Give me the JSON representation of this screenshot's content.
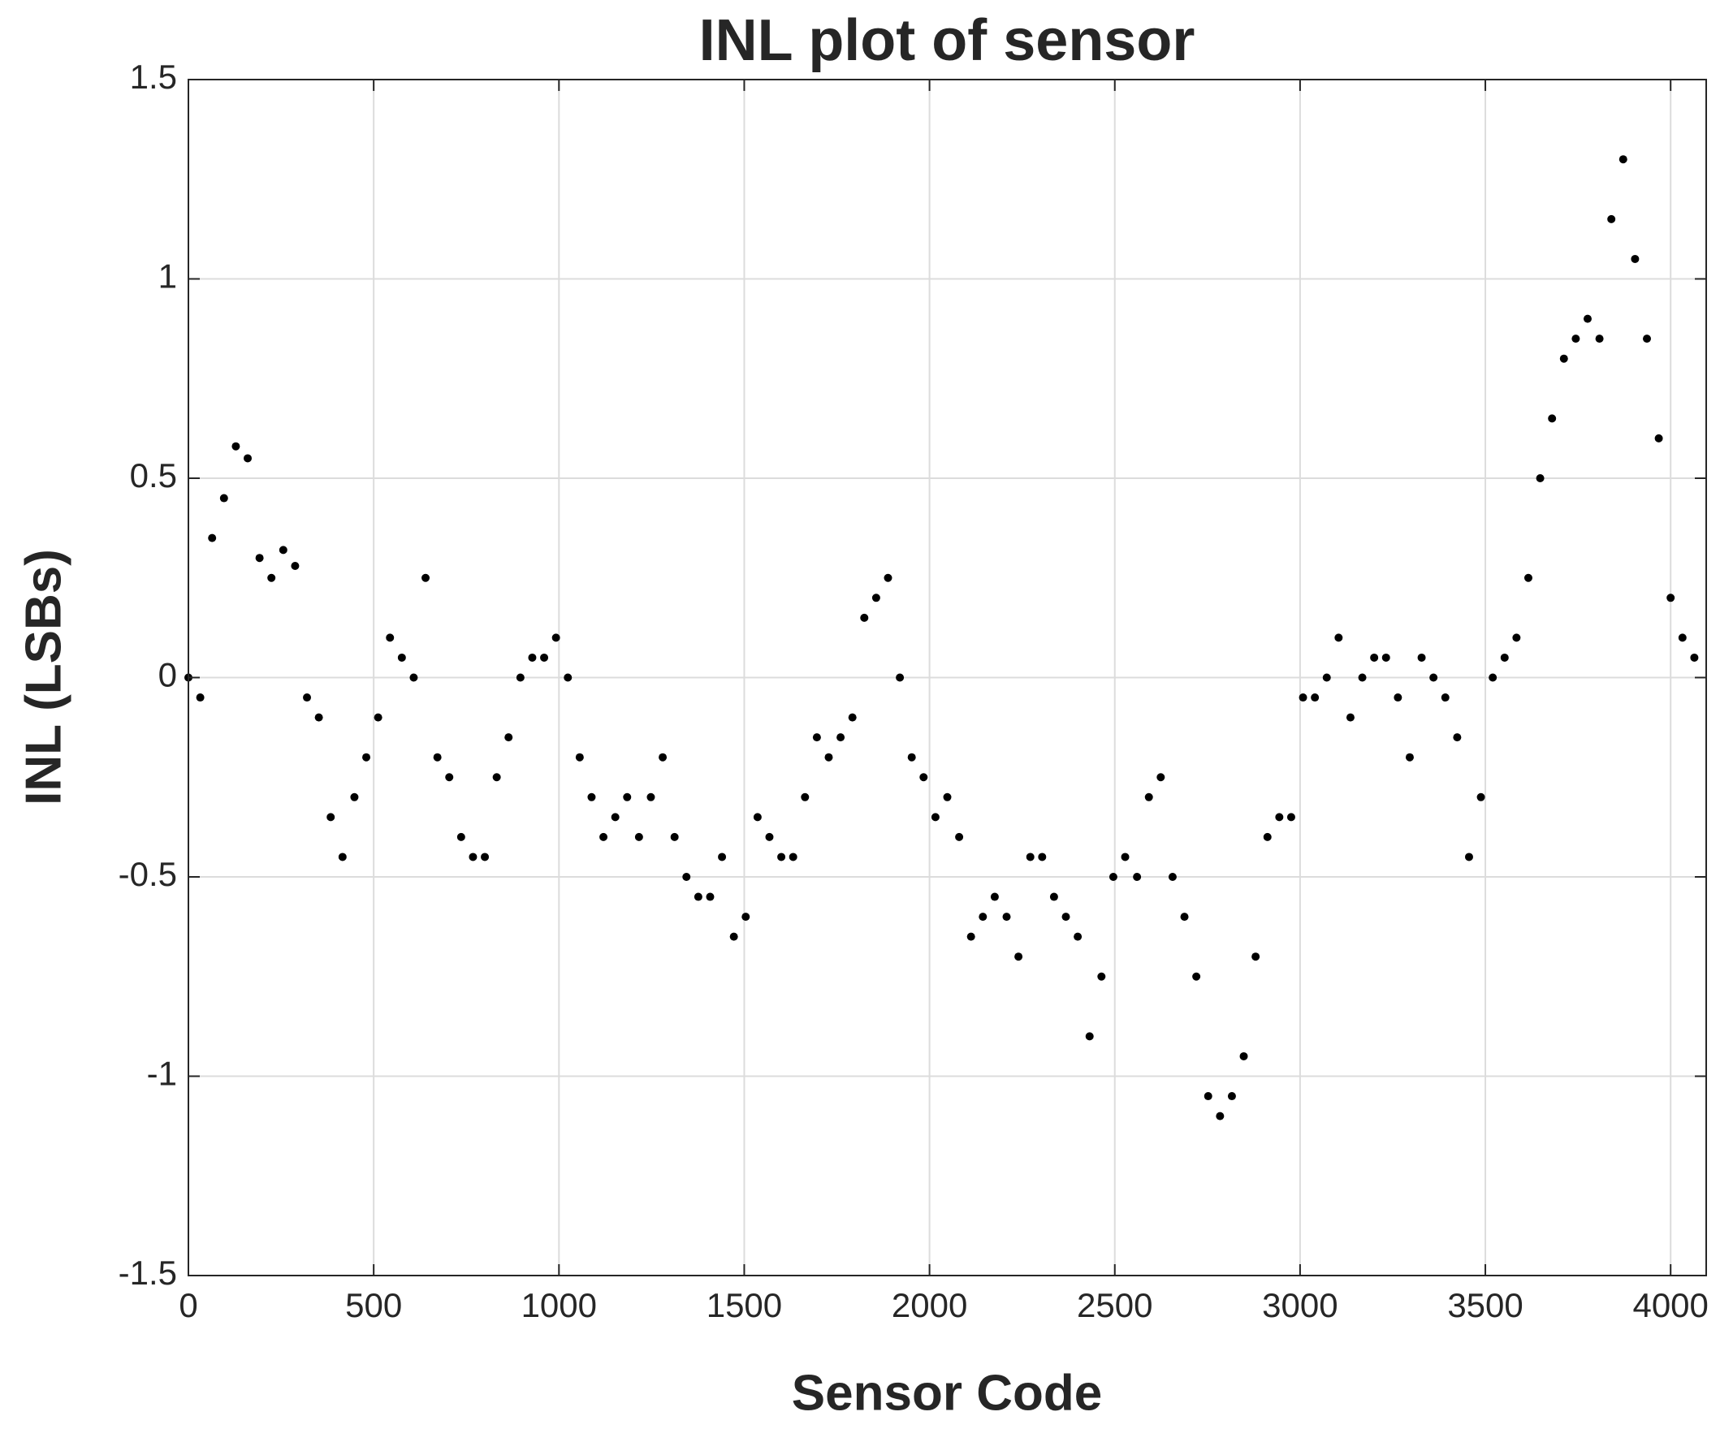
{
  "chart_data": {
    "type": "scatter",
    "title": "INL plot of sensor",
    "x_label": "Sensor Code",
    "y_label": "INL (LSBs)",
    "xlim": [
      0,
      4096
    ],
    "ylim": [
      -1.5,
      1.5
    ],
    "xticks": [
      0,
      500,
      1000,
      1500,
      2000,
      2500,
      3000,
      3500,
      4000
    ],
    "yticks": [
      -1.5,
      -1,
      -0.5,
      0,
      0.5,
      1,
      1.5
    ],
    "grid": true,
    "series": [
      {
        "color": "#000000",
        "x": [
          0,
          32,
          64,
          96,
          128,
          160,
          192,
          224,
          256,
          288,
          320,
          352,
          384,
          416,
          448,
          480,
          512,
          544,
          576,
          608,
          640,
          672,
          704,
          736,
          768,
          800,
          832,
          864,
          896,
          928,
          960,
          992,
          1024,
          1056,
          1088,
          1120,
          1152,
          1184,
          1216,
          1248,
          1280,
          1312,
          1344,
          1376,
          1408,
          1440,
          1472,
          1504,
          1536,
          1568,
          1600,
          1632,
          1664,
          1696,
          1728,
          1760,
          1792,
          1824,
          1856,
          1888,
          1920,
          1952,
          1984,
          2016,
          2048,
          2080,
          2112,
          2144,
          2176,
          2208,
          2240,
          2272,
          2304,
          2336,
          2368,
          2400,
          2432,
          2464,
          2496,
          2528,
          2560,
          2592,
          2624,
          2656,
          2688,
          2720,
          2752,
          2784,
          2816,
          2848,
          2880,
          2912,
          2944,
          2976,
          3008,
          3040,
          3072,
          3104,
          3136,
          3168,
          3200,
          3232,
          3264,
          3296,
          3328,
          3360,
          3392,
          3424,
          3456,
          3488,
          3520,
          3552,
          3584,
          3616,
          3648,
          3680,
          3712,
          3744,
          3776,
          3808,
          3840,
          3872,
          3904,
          3936,
          3968,
          4000,
          4032,
          4064
        ],
        "values": [
          0.0,
          -0.05,
          0.35,
          0.45,
          0.58,
          0.55,
          0.3,
          0.25,
          0.32,
          0.28,
          -0.05,
          -0.1,
          -0.35,
          -0.45,
          -0.3,
          -0.2,
          -0.1,
          0.1,
          0.05,
          0.0,
          0.25,
          -0.2,
          -0.25,
          -0.4,
          -0.45,
          -0.45,
          -0.25,
          -0.15,
          0.0,
          0.05,
          0.05,
          0.1,
          0.0,
          -0.2,
          -0.3,
          -0.4,
          -0.35,
          -0.3,
          -0.4,
          -0.3,
          -0.2,
          -0.4,
          -0.5,
          -0.55,
          -0.55,
          -0.45,
          -0.65,
          -0.6,
          -0.35,
          -0.4,
          -0.45,
          -0.45,
          -0.3,
          -0.15,
          -0.2,
          -0.15,
          -0.1,
          0.15,
          0.2,
          0.25,
          0.0,
          -0.2,
          -0.25,
          -0.35,
          -0.3,
          -0.4,
          -0.65,
          -0.6,
          -0.55,
          -0.6,
          -0.7,
          -0.45,
          -0.45,
          -0.55,
          -0.6,
          -0.65,
          -0.9,
          -0.75,
          -0.5,
          -0.45,
          -0.5,
          -0.3,
          -0.25,
          -0.5,
          -0.6,
          -0.75,
          -1.05,
          -1.1,
          -1.05,
          -0.95,
          -0.7,
          -0.4,
          -0.35,
          -0.35,
          -0.05,
          -0.05,
          0.0,
          0.1,
          -0.1,
          0.0,
          0.05,
          0.05,
          -0.05,
          -0.2,
          0.05,
          0.0,
          -0.05,
          -0.15,
          -0.45,
          -0.3,
          0.0,
          0.05,
          0.1,
          0.25,
          0.5,
          0.65,
          0.8,
          0.85,
          0.9,
          0.85,
          1.15,
          1.3,
          1.05,
          0.85,
          0.6,
          0.2,
          0.1,
          0.05
        ]
      }
    ]
  }
}
